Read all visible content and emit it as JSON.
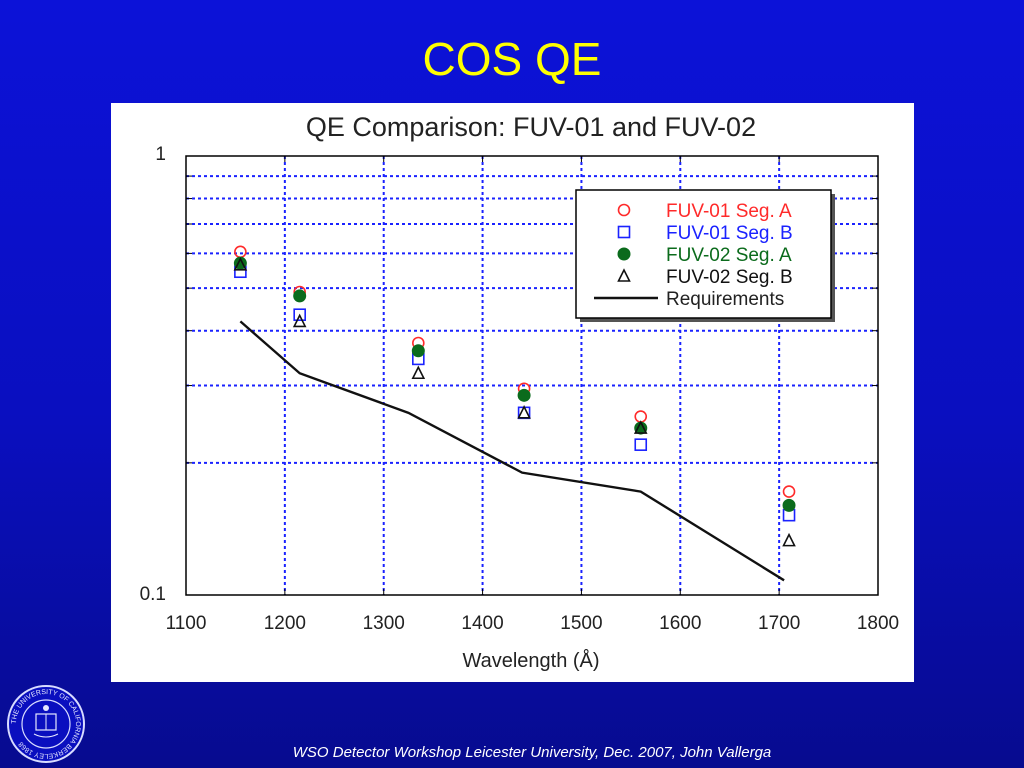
{
  "slide": {
    "title": "COS QE",
    "footer": "WSO Detector Workshop  Leicester University, Dec. 2007, John Vallerga",
    "seal_text": "THE UNIVERSITY OF CALIFORNIA BERKELEY 1868"
  },
  "chart_data": {
    "type": "scatter",
    "title": "QE Comparison: FUV-01 and FUV-02",
    "xlabel": "Wavelength (Å)",
    "ylabel": "",
    "xlim": [
      1100,
      1800
    ],
    "ylim": [
      0.1,
      1
    ],
    "yscale": "log",
    "grid": true,
    "legend_position": "top-right",
    "x_ticks": [
      "1100",
      "1200",
      "1300",
      "1400",
      "1500",
      "1600",
      "1700",
      "1800"
    ],
    "y_ticks": [
      "1",
      "0.1"
    ],
    "series": [
      {
        "name": "FUV-01 Seg. A",
        "marker": "open-circle",
        "color": "#ff2a2a",
        "x": [
          1155,
          1215,
          1335,
          1442,
          1560,
          1710
        ],
        "y": [
          0.605,
          0.49,
          0.375,
          0.295,
          0.255,
          0.172
        ]
      },
      {
        "name": "FUV-01 Seg. B",
        "marker": "open-square",
        "color": "#1a22ff",
        "x": [
          1155,
          1215,
          1335,
          1442,
          1560,
          1710
        ],
        "y": [
          0.545,
          0.435,
          0.345,
          0.26,
          0.22,
          0.152
        ]
      },
      {
        "name": "FUV-02 Seg. A",
        "marker": "filled-circle",
        "color": "#0b6b1c",
        "x": [
          1155,
          1215,
          1335,
          1442,
          1560,
          1710
        ],
        "y": [
          0.57,
          0.48,
          0.36,
          0.285,
          0.24,
          0.16
        ]
      },
      {
        "name": "FUV-02 Seg. B",
        "marker": "open-triangle",
        "color": "#111111",
        "x": [
          1155,
          1215,
          1335,
          1442,
          1560,
          1710
        ],
        "y": [
          0.565,
          0.42,
          0.32,
          0.26,
          0.24,
          0.133
        ]
      },
      {
        "name": "Requirements",
        "marker": "line",
        "color": "#111111",
        "x": [
          1155,
          1215,
          1325,
          1440,
          1560,
          1705
        ],
        "y": [
          0.42,
          0.32,
          0.26,
          0.19,
          0.172,
          0.108
        ]
      }
    ]
  }
}
